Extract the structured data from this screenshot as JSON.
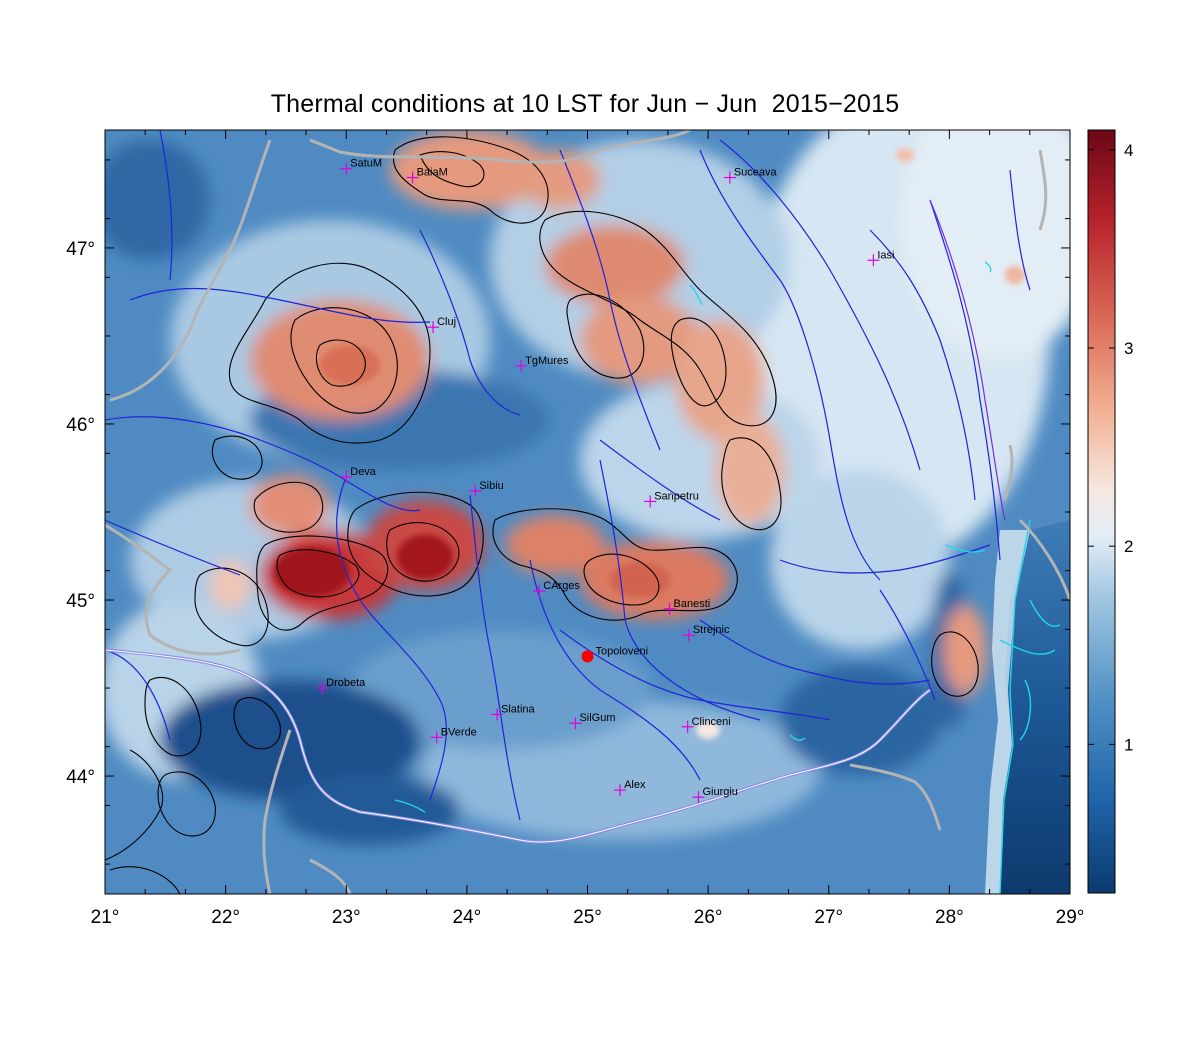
{
  "title": "Thermal conditions at 10 LST for Jun − Jun  2015−2015",
  "map": {
    "lon_range": [
      21,
      29
    ],
    "lat_range": [
      43.33,
      47.67
    ],
    "lon_ticks": [
      "21°",
      "22°",
      "23°",
      "24°",
      "25°",
      "26°",
      "27°",
      "28°",
      "29°"
    ],
    "lat_ticks": [
      "44°",
      "45°",
      "46°",
      "47°"
    ],
    "colors": {
      "low": "#0b3a6e",
      "mid": "#f3f6f9",
      "high": "#6b0716",
      "rivers": "#1f24d8",
      "borders": "#b4b4b4",
      "marker": "#e000e0",
      "highlight": "#ff0000",
      "lakes": "#22d7e6",
      "contours": "#000000"
    }
  },
  "colorbar": {
    "ticks": [
      "1",
      "2",
      "3",
      "4"
    ],
    "tick_values": [
      1,
      2,
      3,
      4
    ],
    "range": [
      0.25,
      4.1
    ]
  },
  "cities": [
    {
      "name": "SatuM",
      "lon": 23.0,
      "lat": 47.45
    },
    {
      "name": "BaiaM",
      "lon": 23.55,
      "lat": 47.4
    },
    {
      "name": "Suceava",
      "lon": 26.18,
      "lat": 47.4
    },
    {
      "name": "Iasi",
      "lon": 27.37,
      "lat": 46.93
    },
    {
      "name": "Cluj",
      "lon": 23.72,
      "lat": 46.55
    },
    {
      "name": "TgMures",
      "lon": 24.45,
      "lat": 46.33
    },
    {
      "name": "Deva",
      "lon": 23.0,
      "lat": 45.7
    },
    {
      "name": "Sibiu",
      "lon": 24.07,
      "lat": 45.62
    },
    {
      "name": "Sanpetru",
      "lon": 25.52,
      "lat": 45.56
    },
    {
      "name": "CArges",
      "lon": 24.6,
      "lat": 45.05
    },
    {
      "name": "Banesti",
      "lon": 25.68,
      "lat": 44.95
    },
    {
      "name": "Strejnic",
      "lon": 25.84,
      "lat": 44.8
    },
    {
      "name": "Drobeta",
      "lon": 22.8,
      "lat": 44.5
    },
    {
      "name": "Slatina",
      "lon": 24.25,
      "lat": 44.35
    },
    {
      "name": "SilGum",
      "lon": 24.9,
      "lat": 44.3
    },
    {
      "name": "Clinceni",
      "lon": 25.83,
      "lat": 44.28
    },
    {
      "name": "BVerde",
      "lon": 23.75,
      "lat": 44.22
    },
    {
      "name": "Alex",
      "lon": 25.27,
      "lat": 43.92
    },
    {
      "name": "Giurgiu",
      "lon": 25.92,
      "lat": 43.88
    }
  ],
  "highlight": {
    "name": "Topoloveni",
    "lon": 25.0,
    "lat": 44.68
  }
}
